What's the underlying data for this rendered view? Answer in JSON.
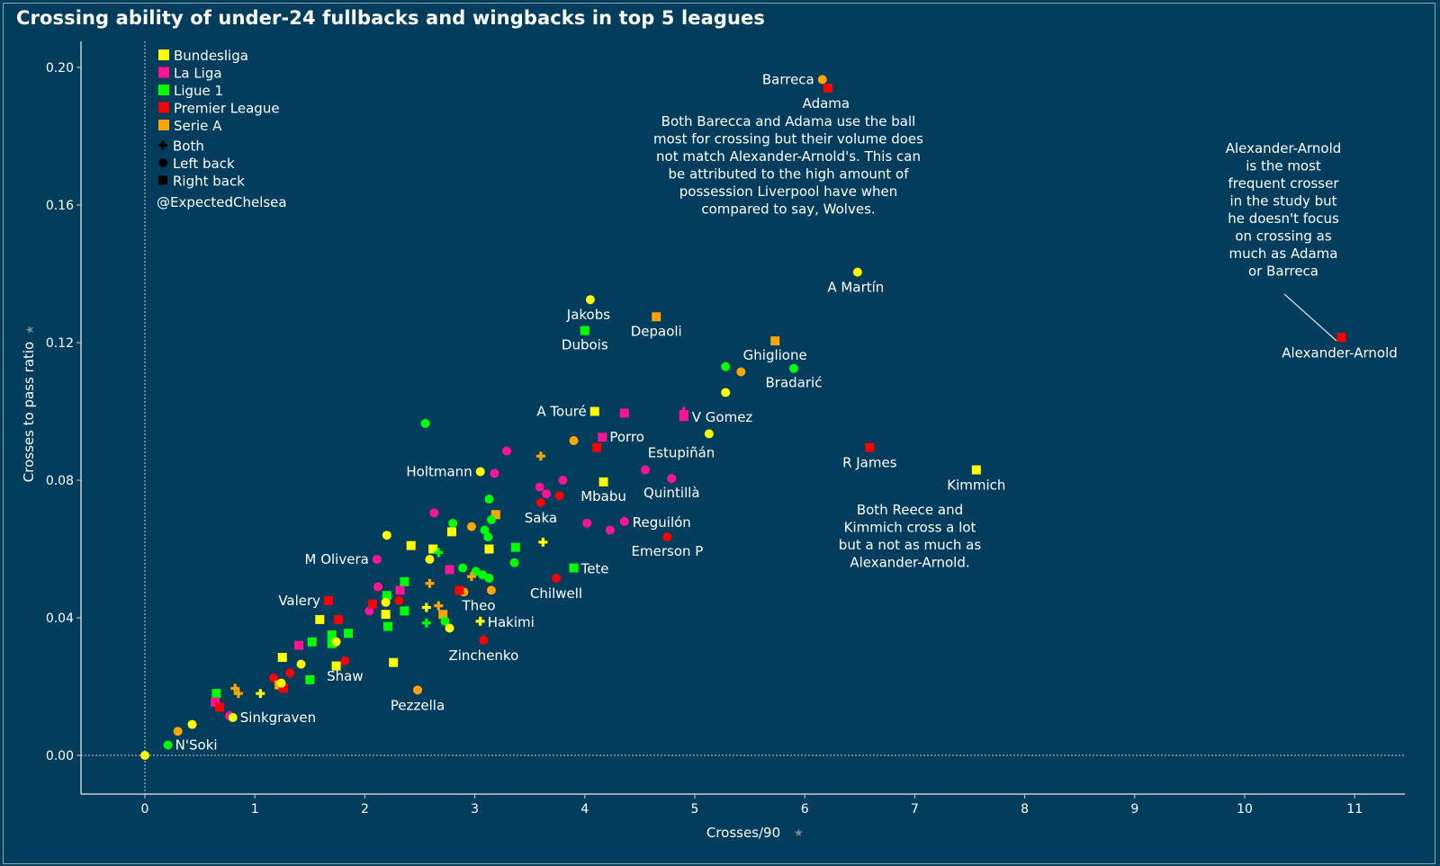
{
  "chart_data": {
    "type": "scatter",
    "title": "Crossing ability of under-24 fullbacks and wingbacks in top 5 leagues",
    "xlabel": "Crosses/90",
    "ylabel": "Crosses to pass ratio",
    "xlim": [
      -0.58,
      11.45
    ],
    "ylim": [
      -0.011,
      0.207
    ],
    "xticks": [
      "0",
      "1",
      "2",
      "3",
      "4",
      "5",
      "6",
      "7",
      "8",
      "9",
      "10",
      "11"
    ],
    "yticks": [
      "0.00",
      "0.04",
      "0.08",
      "0.12",
      "0.16",
      "0.20"
    ],
    "grid": false,
    "zero_lines": true,
    "legend_position": "top-left",
    "league_colors": {
      "Bundesliga": "#ffff00",
      "La Liga": "#ff1493",
      "Ligue 1": "#00ff00",
      "Premier League": "#ff0000",
      "Serie A": "#ffa500"
    },
    "legend": {
      "leagues": [
        "Bundesliga",
        "La Liga",
        "Ligue 1",
        "Premier League",
        "Serie A"
      ],
      "positions": [
        {
          "shape": "plus",
          "label": "Both"
        },
        {
          "shape": "circle",
          "label": "Left back"
        },
        {
          "shape": "square",
          "label": "Right back"
        }
      ],
      "credit": "@ExpectedChelsea"
    },
    "points": [
      {
        "x": 10.88,
        "y": 0.1215,
        "league": "Premier League",
        "pos": "square",
        "label": "Alexander-Arnold"
      },
      {
        "x": 6.16,
        "y": 0.1965,
        "league": "Serie A",
        "pos": "circle",
        "label": "Barreca"
      },
      {
        "x": 6.21,
        "y": 0.194,
        "league": "Premier League",
        "pos": "square",
        "label": "Adama"
      },
      {
        "x": 6.48,
        "y": 0.1405,
        "league": "Bundesliga",
        "pos": "circle",
        "label": "A Martín"
      },
      {
        "x": 4.05,
        "y": 0.1325,
        "league": "Bundesliga",
        "pos": "circle",
        "label": "Jakobs"
      },
      {
        "x": 4.0,
        "y": 0.1235,
        "league": "Ligue 1",
        "pos": "square",
        "label": "Dubois"
      },
      {
        "x": 4.65,
        "y": 0.1275,
        "league": "Serie A",
        "pos": "square",
        "label": "Depaoli"
      },
      {
        "x": 5.73,
        "y": 0.1205,
        "league": "Serie A",
        "pos": "square",
        "label": "Ghiglione"
      },
      {
        "x": 5.28,
        "y": 0.113,
        "league": "Ligue 1",
        "pos": "circle",
        "label": ""
      },
      {
        "x": 5.42,
        "y": 0.1115,
        "league": "Serie A",
        "pos": "circle",
        "label": ""
      },
      {
        "x": 5.9,
        "y": 0.1125,
        "league": "Ligue 1",
        "pos": "circle",
        "label": "Bradarić"
      },
      {
        "x": 5.28,
        "y": 0.1055,
        "league": "Bundesliga",
        "pos": "circle",
        "label": ""
      },
      {
        "x": 4.09,
        "y": 0.1,
        "league": "Bundesliga",
        "pos": "square",
        "label": "A Touré"
      },
      {
        "x": 4.36,
        "y": 0.0995,
        "league": "La Liga",
        "pos": "square",
        "label": ""
      },
      {
        "x": 4.9,
        "y": 0.0985,
        "league": "La Liga",
        "pos": "square",
        "label": "V Gomez"
      },
      {
        "x": 4.9,
        "y": 0.1,
        "league": "La Liga",
        "pos": "plus",
        "label": ""
      },
      {
        "x": 5.13,
        "y": 0.0935,
        "league": "Bundesliga",
        "pos": "circle",
        "label": ""
      },
      {
        "x": 4.16,
        "y": 0.0925,
        "league": "La Liga",
        "pos": "square",
        "label": "Porro"
      },
      {
        "x": 3.9,
        "y": 0.0915,
        "league": "Serie A",
        "pos": "circle",
        "label": ""
      },
      {
        "x": 4.11,
        "y": 0.0895,
        "league": "Premier League",
        "pos": "square",
        "label": ""
      },
      {
        "x": 2.55,
        "y": 0.0965,
        "league": "Ligue 1",
        "pos": "circle",
        "label": ""
      },
      {
        "x": 3.29,
        "y": 0.0885,
        "league": "La Liga",
        "pos": "circle",
        "label": ""
      },
      {
        "x": 3.6,
        "y": 0.087,
        "league": "Serie A",
        "pos": "plus",
        "label": ""
      },
      {
        "x": 3.05,
        "y": 0.0825,
        "league": "Bundesliga",
        "pos": "circle",
        "label": "Holtmann"
      },
      {
        "x": 3.18,
        "y": 0.082,
        "league": "La Liga",
        "pos": "circle",
        "label": ""
      },
      {
        "x": 4.55,
        "y": 0.083,
        "league": "La Liga",
        "pos": "circle",
        "label": "Estupiñán"
      },
      {
        "x": 4.79,
        "y": 0.0805,
        "league": "La Liga",
        "pos": "circle",
        "label": "Quintillà"
      },
      {
        "x": 4.17,
        "y": 0.0795,
        "league": "Bundesliga",
        "pos": "square",
        "label": "Mbabu"
      },
      {
        "x": 3.8,
        "y": 0.08,
        "league": "La Liga",
        "pos": "circle",
        "label": ""
      },
      {
        "x": 3.59,
        "y": 0.078,
        "league": "La Liga",
        "pos": "circle",
        "label": ""
      },
      {
        "x": 3.65,
        "y": 0.076,
        "league": "La Liga",
        "pos": "circle",
        "label": ""
      },
      {
        "x": 3.77,
        "y": 0.0755,
        "league": "Premier League",
        "pos": "circle",
        "label": ""
      },
      {
        "x": 3.6,
        "y": 0.0735,
        "league": "Premier League",
        "pos": "circle",
        "label": "Saka"
      },
      {
        "x": 3.13,
        "y": 0.0745,
        "league": "Ligue 1",
        "pos": "circle",
        "label": ""
      },
      {
        "x": 2.63,
        "y": 0.0705,
        "league": "La Liga",
        "pos": "circle",
        "label": ""
      },
      {
        "x": 3.19,
        "y": 0.07,
        "league": "Serie A",
        "pos": "square",
        "label": ""
      },
      {
        "x": 3.15,
        "y": 0.0685,
        "league": "Ligue 1",
        "pos": "circle",
        "label": ""
      },
      {
        "x": 2.8,
        "y": 0.0675,
        "league": "Ligue 1",
        "pos": "circle",
        "label": ""
      },
      {
        "x": 2.97,
        "y": 0.0665,
        "league": "Serie A",
        "pos": "circle",
        "label": ""
      },
      {
        "x": 4.02,
        "y": 0.0675,
        "league": "La Liga",
        "pos": "circle",
        "label": ""
      },
      {
        "x": 4.36,
        "y": 0.068,
        "league": "La Liga",
        "pos": "circle",
        "label": "Reguilón"
      },
      {
        "x": 4.23,
        "y": 0.0655,
        "league": "La Liga",
        "pos": "circle",
        "label": ""
      },
      {
        "x": 4.75,
        "y": 0.0635,
        "league": "Premier League",
        "pos": "circle",
        "label": "Emerson P"
      },
      {
        "x": 2.79,
        "y": 0.065,
        "league": "Bundesliga",
        "pos": "square",
        "label": ""
      },
      {
        "x": 3.09,
        "y": 0.0655,
        "league": "Ligue 1",
        "pos": "circle",
        "label": ""
      },
      {
        "x": 3.12,
        "y": 0.0635,
        "league": "Ligue 1",
        "pos": "circle",
        "label": ""
      },
      {
        "x": 2.2,
        "y": 0.064,
        "league": "Bundesliga",
        "pos": "circle",
        "label": ""
      },
      {
        "x": 2.42,
        "y": 0.061,
        "league": "Bundesliga",
        "pos": "square",
        "label": ""
      },
      {
        "x": 2.62,
        "y": 0.06,
        "league": "Bundesliga",
        "pos": "square",
        "label": ""
      },
      {
        "x": 2.67,
        "y": 0.059,
        "league": "Ligue 1",
        "pos": "plus",
        "label": ""
      },
      {
        "x": 3.13,
        "y": 0.06,
        "league": "Bundesliga",
        "pos": "square",
        "label": ""
      },
      {
        "x": 3.37,
        "y": 0.0605,
        "league": "Ligue 1",
        "pos": "square",
        "label": ""
      },
      {
        "x": 3.62,
        "y": 0.062,
        "league": "Bundesliga",
        "pos": "plus",
        "label": ""
      },
      {
        "x": 2.59,
        "y": 0.057,
        "league": "Bundesliga",
        "pos": "circle",
        "label": ""
      },
      {
        "x": 2.11,
        "y": 0.057,
        "league": "La Liga",
        "pos": "circle",
        "label": "M Olivera"
      },
      {
        "x": 3.36,
        "y": 0.056,
        "league": "Ligue 1",
        "pos": "circle",
        "label": ""
      },
      {
        "x": 3.9,
        "y": 0.0545,
        "league": "Ligue 1",
        "pos": "square",
        "label": "Tete"
      },
      {
        "x": 2.77,
        "y": 0.054,
        "league": "La Liga",
        "pos": "square",
        "label": ""
      },
      {
        "x": 2.89,
        "y": 0.0545,
        "league": "Ligue 1",
        "pos": "circle",
        "label": ""
      },
      {
        "x": 3.01,
        "y": 0.0535,
        "league": "Ligue 1",
        "pos": "circle",
        "label": ""
      },
      {
        "x": 3.07,
        "y": 0.0525,
        "league": "Ligue 1",
        "pos": "circle",
        "label": ""
      },
      {
        "x": 3.13,
        "y": 0.0515,
        "league": "Ligue 1",
        "pos": "circle",
        "label": ""
      },
      {
        "x": 2.97,
        "y": 0.052,
        "league": "Serie A",
        "pos": "plus",
        "label": ""
      },
      {
        "x": 3.74,
        "y": 0.0515,
        "league": "Premier League",
        "pos": "circle",
        "label": "Chilwell"
      },
      {
        "x": 2.59,
        "y": 0.05,
        "league": "Serie A",
        "pos": "plus",
        "label": ""
      },
      {
        "x": 2.36,
        "y": 0.0505,
        "league": "Ligue 1",
        "pos": "square",
        "label": ""
      },
      {
        "x": 2.12,
        "y": 0.049,
        "league": "La Liga",
        "pos": "circle",
        "label": ""
      },
      {
        "x": 2.32,
        "y": 0.048,
        "league": "La Liga",
        "pos": "square",
        "label": ""
      },
      {
        "x": 3.15,
        "y": 0.048,
        "league": "Serie A",
        "pos": "circle",
        "label": ""
      },
      {
        "x": 2.9,
        "y": 0.0475,
        "league": "Serie A",
        "pos": "circle",
        "label": ""
      },
      {
        "x": 2.86,
        "y": 0.048,
        "league": "Premier League",
        "pos": "square",
        "label": "Theo"
      },
      {
        "x": 2.2,
        "y": 0.0465,
        "league": "Ligue 1",
        "pos": "square",
        "label": ""
      },
      {
        "x": 1.67,
        "y": 0.045,
        "league": "Premier League",
        "pos": "square",
        "label": "Valery"
      },
      {
        "x": 2.19,
        "y": 0.0445,
        "league": "Bundesliga",
        "pos": "circle",
        "label": ""
      },
      {
        "x": 2.31,
        "y": 0.045,
        "league": "Premier League",
        "pos": "circle",
        "label": ""
      },
      {
        "x": 2.04,
        "y": 0.042,
        "league": "La Liga",
        "pos": "circle",
        "label": ""
      },
      {
        "x": 2.07,
        "y": 0.044,
        "league": "Premier League",
        "pos": "square",
        "label": ""
      },
      {
        "x": 2.19,
        "y": 0.041,
        "league": "Bundesliga",
        "pos": "square",
        "label": ""
      },
      {
        "x": 2.36,
        "y": 0.042,
        "league": "Ligue 1",
        "pos": "square",
        "label": ""
      },
      {
        "x": 2.56,
        "y": 0.043,
        "league": "Bundesliga",
        "pos": "plus",
        "label": ""
      },
      {
        "x": 2.67,
        "y": 0.0435,
        "league": "Serie A",
        "pos": "plus",
        "label": ""
      },
      {
        "x": 2.71,
        "y": 0.041,
        "league": "Serie A",
        "pos": "square",
        "label": ""
      },
      {
        "x": 3.05,
        "y": 0.039,
        "league": "Bundesliga",
        "pos": "plus",
        "label": "Hakimi"
      },
      {
        "x": 2.56,
        "y": 0.0385,
        "league": "Ligue 1",
        "pos": "plus",
        "label": ""
      },
      {
        "x": 2.73,
        "y": 0.039,
        "league": "Ligue 1",
        "pos": "circle",
        "label": ""
      },
      {
        "x": 2.77,
        "y": 0.037,
        "league": "Bundesliga",
        "pos": "circle",
        "label": ""
      },
      {
        "x": 2.21,
        "y": 0.0375,
        "league": "Ligue 1",
        "pos": "square",
        "label": ""
      },
      {
        "x": 1.59,
        "y": 0.0395,
        "league": "Bundesliga",
        "pos": "square",
        "label": ""
      },
      {
        "x": 1.76,
        "y": 0.0395,
        "league": "Premier League",
        "pos": "square",
        "label": ""
      },
      {
        "x": 1.7,
        "y": 0.035,
        "league": "Ligue 1",
        "pos": "square",
        "label": ""
      },
      {
        "x": 1.85,
        "y": 0.0355,
        "league": "Ligue 1",
        "pos": "square",
        "label": ""
      },
      {
        "x": 1.52,
        "y": 0.033,
        "league": "Ligue 1",
        "pos": "square",
        "label": ""
      },
      {
        "x": 1.7,
        "y": 0.0325,
        "league": "Ligue 1",
        "pos": "square",
        "label": ""
      },
      {
        "x": 1.74,
        "y": 0.033,
        "league": "Bundesliga",
        "pos": "circle",
        "label": ""
      },
      {
        "x": 1.4,
        "y": 0.032,
        "league": "La Liga",
        "pos": "square",
        "label": ""
      },
      {
        "x": 3.08,
        "y": 0.0335,
        "league": "Premier League",
        "pos": "circle",
        "label": "Zinchenko"
      },
      {
        "x": 1.25,
        "y": 0.0285,
        "league": "Bundesliga",
        "pos": "square",
        "label": ""
      },
      {
        "x": 1.42,
        "y": 0.0265,
        "league": "Bundesliga",
        "pos": "circle",
        "label": ""
      },
      {
        "x": 1.74,
        "y": 0.026,
        "league": "Bundesliga",
        "pos": "square",
        "label": ""
      },
      {
        "x": 1.82,
        "y": 0.0275,
        "league": "Premier League",
        "pos": "circle",
        "label": "Shaw"
      },
      {
        "x": 2.26,
        "y": 0.027,
        "league": "Bundesliga",
        "pos": "square",
        "label": ""
      },
      {
        "x": 1.32,
        "y": 0.024,
        "league": "Premier League",
        "pos": "circle",
        "label": ""
      },
      {
        "x": 1.17,
        "y": 0.0225,
        "league": "Premier League",
        "pos": "circle",
        "label": ""
      },
      {
        "x": 1.5,
        "y": 0.022,
        "league": "Ligue 1",
        "pos": "square",
        "label": ""
      },
      {
        "x": 1.22,
        "y": 0.0205,
        "league": "Serie A",
        "pos": "square",
        "label": ""
      },
      {
        "x": 1.26,
        "y": 0.0195,
        "league": "Premier League",
        "pos": "square",
        "label": ""
      },
      {
        "x": 1.24,
        "y": 0.021,
        "league": "Bundesliga",
        "pos": "circle",
        "label": ""
      },
      {
        "x": 2.48,
        "y": 0.019,
        "league": "Serie A",
        "pos": "circle",
        "label": "Pezzella"
      },
      {
        "x": 0.65,
        "y": 0.018,
        "league": "Ligue 1",
        "pos": "square",
        "label": ""
      },
      {
        "x": 0.82,
        "y": 0.0195,
        "league": "Serie A",
        "pos": "plus",
        "label": ""
      },
      {
        "x": 0.85,
        "y": 0.018,
        "league": "Serie A",
        "pos": "plus",
        "label": ""
      },
      {
        "x": 1.05,
        "y": 0.018,
        "league": "Bundesliga",
        "pos": "plus",
        "label": ""
      },
      {
        "x": 0.64,
        "y": 0.0155,
        "league": "La Liga",
        "pos": "square",
        "label": ""
      },
      {
        "x": 0.68,
        "y": 0.014,
        "league": "Premier League",
        "pos": "square",
        "label": ""
      },
      {
        "x": 0.77,
        "y": 0.0115,
        "league": "La Liga",
        "pos": "circle",
        "label": ""
      },
      {
        "x": 0.8,
        "y": 0.011,
        "league": "Bundesliga",
        "pos": "circle",
        "label": "Sinkgraven"
      },
      {
        "x": 0.43,
        "y": 0.009,
        "league": "Bundesliga",
        "pos": "circle",
        "label": ""
      },
      {
        "x": 0.3,
        "y": 0.007,
        "league": "Serie A",
        "pos": "circle",
        "label": ""
      },
      {
        "x": 0.21,
        "y": 0.003,
        "league": "Ligue 1",
        "pos": "circle",
        "label": "N'Soki"
      },
      {
        "x": 0.0,
        "y": 0.0,
        "league": "Bundesliga",
        "pos": "circle",
        "label": ""
      },
      {
        "x": 6.59,
        "y": 0.0895,
        "league": "Premier League",
        "pos": "square",
        "label": "R James"
      },
      {
        "x": 7.56,
        "y": 0.083,
        "league": "Bundesliga",
        "pos": "square",
        "label": "Kimmich"
      }
    ],
    "annotations": [
      {
        "id": "barreca-adama",
        "lines": [
          "Both Barecca and Adama use the ball",
          "most for crossing but their volume does",
          "not match Alexander-Arnold's. This can",
          "be attributed to the high amount of",
          "possession Liverpool have when",
          "compared to say, Wolves."
        ]
      },
      {
        "id": "taa",
        "lines": [
          "Alexander-Arnold",
          "is the most",
          "frequent crosser",
          "in the study but",
          "he doesn't focus",
          "on crossing as",
          "much as Adama",
          "or Barreca"
        ]
      },
      {
        "id": "james-kimmich",
        "lines": [
          "Both Reece and",
          "Kimmich cross a lot",
          "but a not as much as",
          "Alexander-Arnold."
        ]
      }
    ]
  }
}
